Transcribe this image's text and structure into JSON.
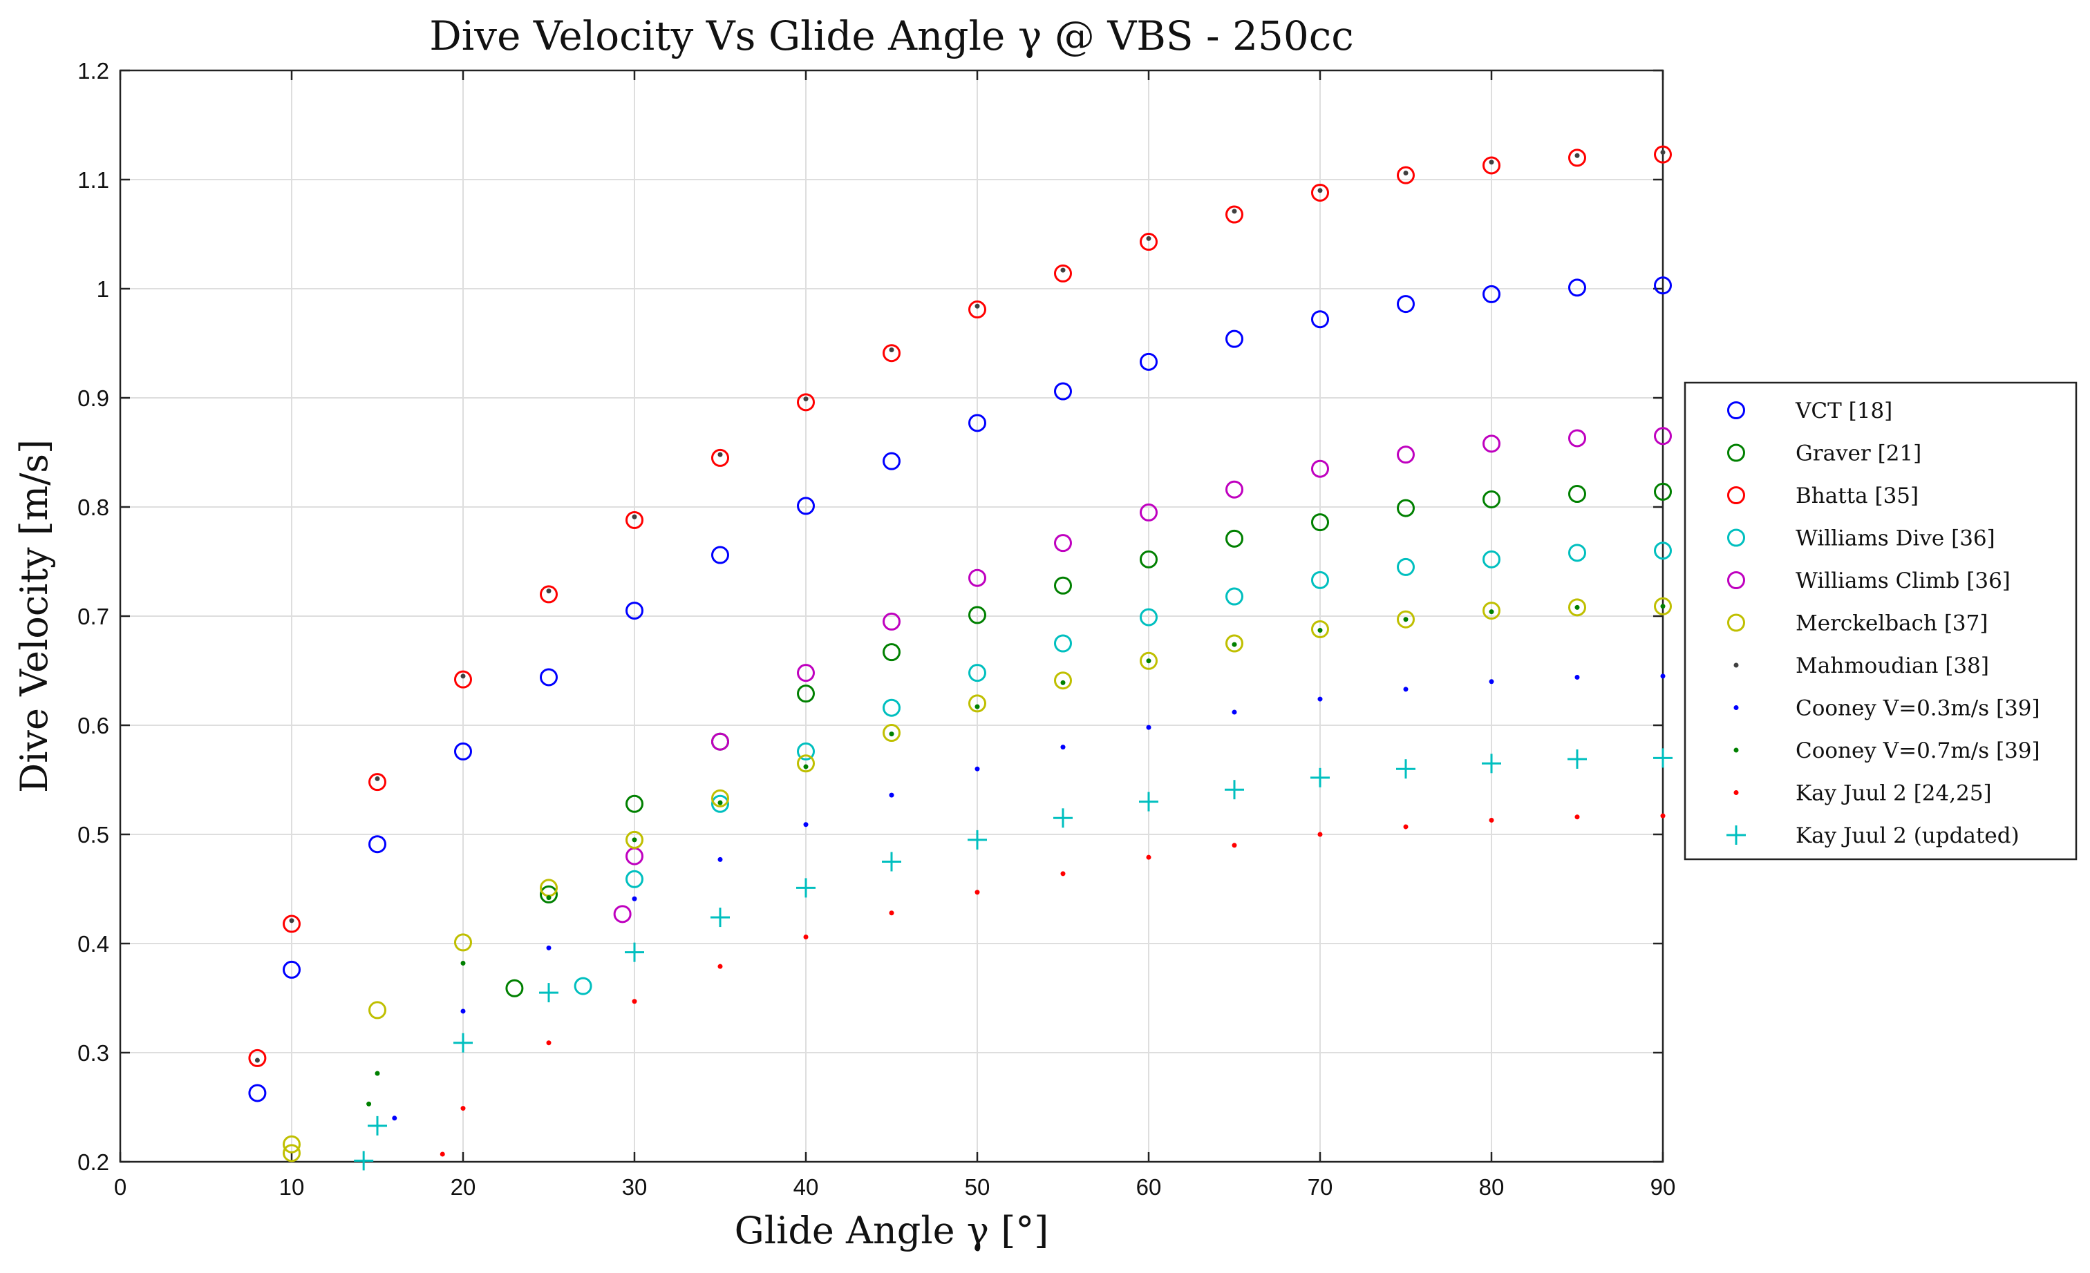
{
  "chart_data": {
    "type": "scatter",
    "title": "Dive Velocity Vs Glide Angle γ @ VBS - 250cc",
    "xlabel": "Glide Angle γ [°]",
    "ylabel": "Dive Velocity [m/s]",
    "xlim": [
      0,
      90
    ],
    "ylim": [
      0.2,
      1.2
    ],
    "xticks": [
      0,
      10,
      20,
      30,
      40,
      50,
      60,
      70,
      80,
      90
    ],
    "yticks": [
      0.2,
      0.3,
      0.4,
      0.5,
      0.6,
      0.7,
      0.8,
      0.9,
      1,
      1.1,
      1.2
    ],
    "xtick_labels": [
      "0",
      "10",
      "20",
      "30",
      "40",
      "50",
      "60",
      "70",
      "80",
      "90"
    ],
    "ytick_labels": [
      "0.2",
      "0.3",
      "0.4",
      "0.5",
      "0.6",
      "0.7",
      "0.8",
      "0.9",
      "1",
      "1.1",
      "1.2"
    ],
    "grid": true,
    "legend_position": "right",
    "series": [
      {
        "name": "VCT [18]",
        "color": "#0000ff",
        "marker": "circle",
        "x": [
          8,
          10,
          15,
          20,
          25,
          30,
          35,
          40,
          45,
          50,
          55,
          60,
          65,
          70,
          75,
          80,
          85,
          90
        ],
        "y": [
          0.263,
          0.376,
          0.491,
          0.576,
          0.644,
          0.705,
          0.756,
          0.801,
          0.842,
          0.877,
          0.906,
          0.933,
          0.954,
          0.972,
          0.986,
          0.995,
          1.001,
          1.003
        ]
      },
      {
        "name": "Graver [21]",
        "color": "#008000",
        "marker": "circle",
        "x": [
          23,
          25,
          30,
          35,
          40,
          45,
          50,
          55,
          60,
          65,
          70,
          75,
          80,
          85,
          90
        ],
        "y": [
          0.359,
          0.445,
          0.528,
          0.585,
          0.629,
          0.667,
          0.701,
          0.728,
          0.752,
          0.771,
          0.786,
          0.799,
          0.807,
          0.812,
          0.814
        ]
      },
      {
        "name": "Bhatta [35]",
        "color": "#ff0000",
        "marker": "circle",
        "x": [
          8,
          10,
          15,
          20,
          25,
          30,
          35,
          40,
          45,
          50,
          55,
          60,
          65,
          70,
          75,
          80,
          85,
          90
        ],
        "y": [
          0.295,
          0.418,
          0.548,
          0.642,
          0.72,
          0.788,
          0.845,
          0.896,
          0.941,
          0.981,
          1.014,
          1.043,
          1.068,
          1.088,
          1.104,
          1.113,
          1.12,
          1.123
        ]
      },
      {
        "name": "Williams Dive [36]",
        "color": "#00bfbf",
        "marker": "circle",
        "x": [
          27,
          30,
          35,
          40,
          45,
          50,
          55,
          60,
          65,
          70,
          75,
          80,
          85,
          90
        ],
        "y": [
          0.361,
          0.459,
          0.528,
          0.576,
          0.616,
          0.648,
          0.675,
          0.699,
          0.718,
          0.733,
          0.745,
          0.752,
          0.758,
          0.76
        ]
      },
      {
        "name": "Williams Climb [36]",
        "color": "#bf00bf",
        "marker": "circle",
        "x": [
          29.3,
          30,
          35,
          40,
          45,
          50,
          55,
          60,
          65,
          70,
          75,
          80,
          85,
          90
        ],
        "y": [
          0.427,
          0.48,
          0.585,
          0.648,
          0.695,
          0.735,
          0.767,
          0.795,
          0.816,
          0.835,
          0.848,
          0.858,
          0.863,
          0.865
        ]
      },
      {
        "name": "Merckelbach [37]",
        "color": "#bfbf00",
        "marker": "circle",
        "x": [
          10,
          10,
          15,
          20,
          25,
          30,
          35,
          40,
          45,
          50,
          55,
          60,
          65,
          70,
          75,
          80,
          85,
          90
        ],
        "y": [
          0.208,
          0.216,
          0.339,
          0.401,
          0.451,
          0.495,
          0.533,
          0.565,
          0.593,
          0.62,
          0.641,
          0.659,
          0.675,
          0.688,
          0.697,
          0.705,
          0.708,
          0.709
        ]
      },
      {
        "name": "Mahmoudian [38]",
        "color": "#404040",
        "marker": "dot",
        "x": [
          8,
          10,
          15,
          20,
          25,
          30,
          35,
          40,
          45,
          50,
          55,
          60,
          65,
          70,
          75,
          80,
          85,
          90
        ],
        "y": [
          0.293,
          0.421,
          0.551,
          0.645,
          0.723,
          0.791,
          0.848,
          0.899,
          0.944,
          0.984,
          1.017,
          1.046,
          1.071,
          1.09,
          1.106,
          1.116,
          1.122,
          1.125
        ]
      },
      {
        "name": "Cooney V=0.3m/s [39]",
        "color": "#0000ff",
        "marker": "dot",
        "x": [
          16,
          20,
          25,
          30,
          35,
          40,
          45,
          50,
          55,
          60,
          65,
          70,
          75,
          80,
          85,
          90
        ],
        "y": [
          0.24,
          0.338,
          0.396,
          0.441,
          0.477,
          0.509,
          0.536,
          0.56,
          0.58,
          0.598,
          0.612,
          0.624,
          0.633,
          0.64,
          0.644,
          0.645
        ]
      },
      {
        "name": "Cooney V=0.7m/s [39]",
        "color": "#008000",
        "marker": "dot",
        "x": [
          14.5,
          15,
          20,
          25,
          30,
          35,
          40,
          45,
          50,
          55,
          60,
          65,
          70,
          75,
          80,
          85,
          90
        ],
        "y": [
          0.253,
          0.281,
          0.382,
          0.442,
          0.495,
          0.529,
          0.562,
          0.592,
          0.617,
          0.639,
          0.659,
          0.674,
          0.687,
          0.697,
          0.704,
          0.708,
          0.709
        ]
      },
      {
        "name": "Kay Juul 2 [24,25]",
        "color": "#ff0000",
        "marker": "dot",
        "x": [
          18.8,
          20,
          25,
          30,
          35,
          40,
          45,
          50,
          55,
          60,
          65,
          70,
          75,
          80,
          85,
          90
        ],
        "y": [
          0.207,
          0.249,
          0.309,
          0.347,
          0.379,
          0.406,
          0.428,
          0.447,
          0.464,
          0.479,
          0.49,
          0.5,
          0.507,
          0.513,
          0.516,
          0.517
        ]
      },
      {
        "name": "Kay Juul 2 (updated)",
        "color": "#00bfbf",
        "marker": "plus",
        "x": [
          14.2,
          15,
          20,
          25,
          30,
          35,
          40,
          45,
          50,
          55,
          60,
          65,
          70,
          75,
          80,
          85,
          90
        ],
        "y": [
          0.201,
          0.233,
          0.309,
          0.355,
          0.392,
          0.424,
          0.451,
          0.475,
          0.495,
          0.515,
          0.53,
          0.541,
          0.552,
          0.56,
          0.565,
          0.569,
          0.57
        ]
      }
    ]
  }
}
